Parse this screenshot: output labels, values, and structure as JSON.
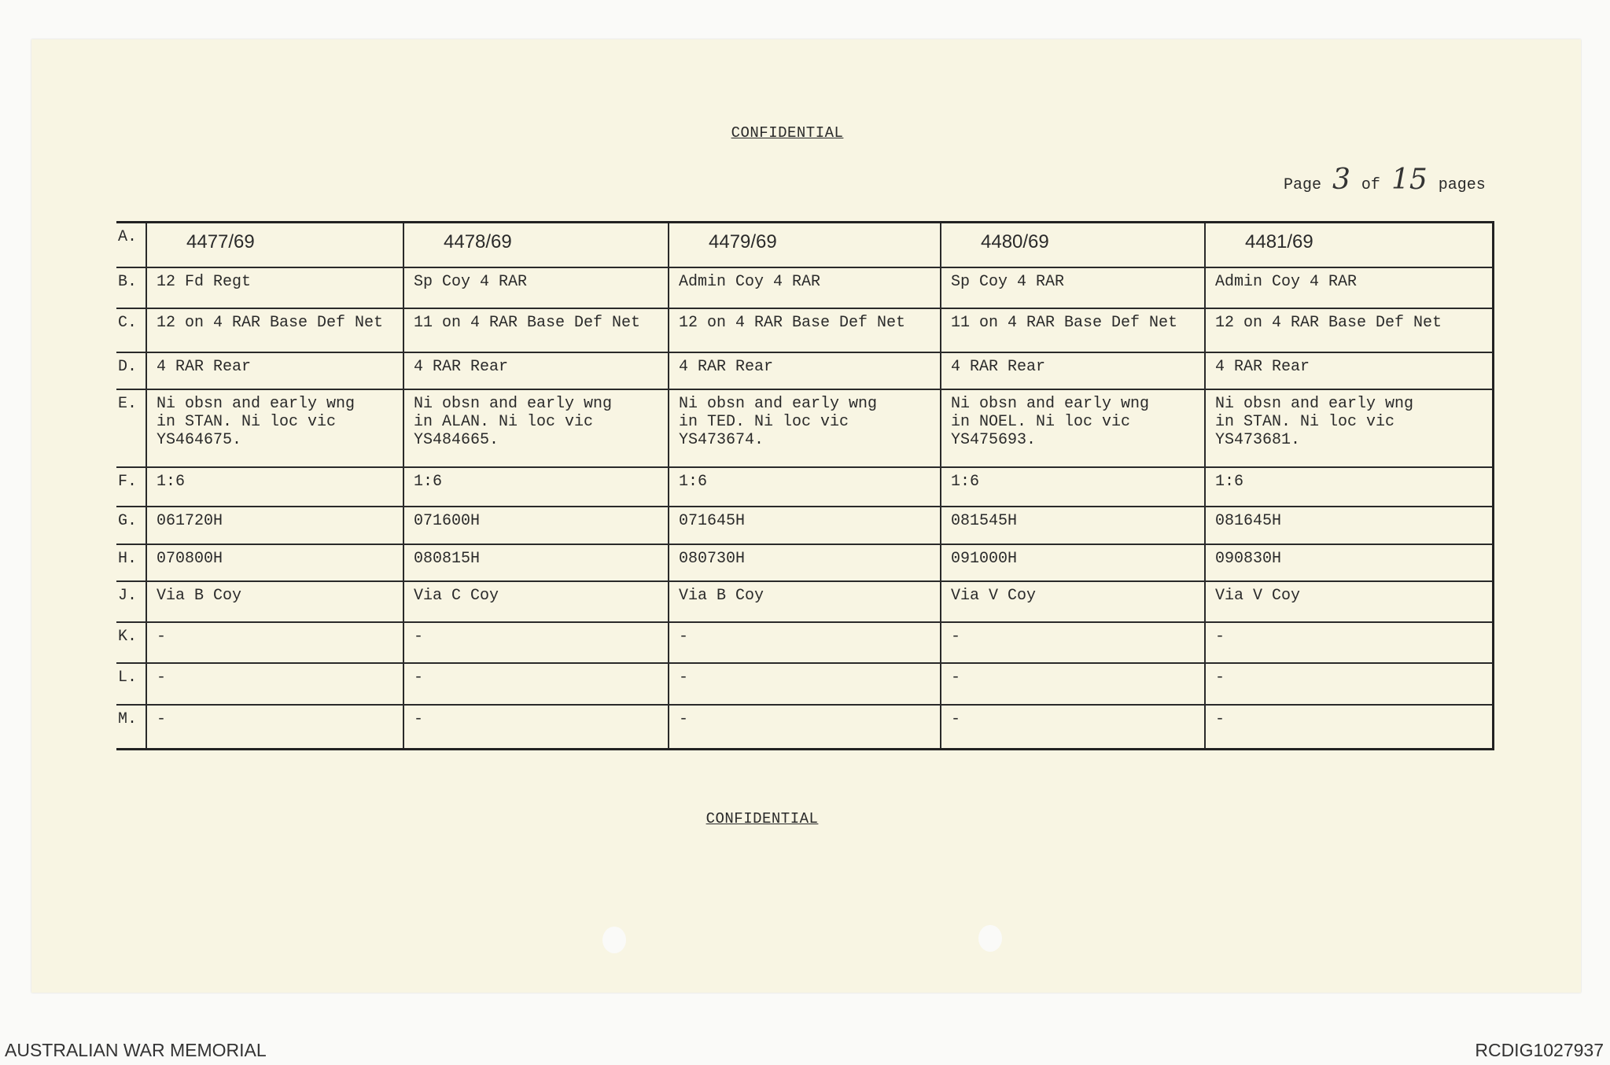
{
  "header": {
    "classification": "CONFIDENTIAL",
    "page_label": "Page",
    "page_number": "3",
    "of_label": "of",
    "total_pages": "15",
    "pages_label": "pages"
  },
  "table": {
    "row_labels": [
      "A.",
      "B.",
      "C.",
      "D.",
      "E.",
      "F.",
      "G.",
      "H.",
      "J.",
      "K.",
      "L.",
      "M."
    ],
    "columns": [
      [
        "4477/69",
        "12 Fd Regt",
        "12 on 4 RAR Base Def Net",
        "4 RAR Rear",
        "Ni obsn and early wng\nin STAN.  Ni loc vic\nYS464675.",
        "1:6",
        "061720H",
        "070800H",
        "Via B Coy",
        "-",
        "-",
        "-"
      ],
      [
        "4478/69",
        "Sp Coy 4 RAR",
        "11 on 4 RAR Base Def Net",
        "4 RAR Rear",
        "Ni obsn and early wng\nin ALAN.  Ni loc vic\nYS484665.",
        "1:6",
        "071600H",
        "080815H",
        "Via C Coy",
        "-",
        "-",
        "-"
      ],
      [
        "4479/69",
        "Admin Coy 4 RAR",
        "12 on 4 RAR Base Def Net",
        "4 RAR Rear",
        "Ni obsn and early wng\nin TED.  Ni loc vic\nYS473674.",
        "1:6",
        "071645H",
        "080730H",
        "Via B Coy",
        "-",
        "-",
        "-"
      ],
      [
        "4480/69",
        "Sp Coy 4 RAR",
        "11 on 4 RAR Base Def Net",
        "4 RAR Rear",
        "Ni obsn and early wng\nin NOEL.  Ni loc vic\nYS475693.",
        "1:6",
        "081545H",
        "091000H",
        "Via V Coy",
        "-",
        "-",
        "-"
      ],
      [
        "4481/69",
        "Admin Coy 4 RAR",
        "12 on 4 RAR Base Def Net",
        "4 RAR Rear",
        "Ni obsn and early wng\nin STAN.  Ni loc vic\nYS473681.",
        "1:6",
        "081645H",
        "090830H",
        "Via V Coy",
        "-",
        "-",
        "-"
      ]
    ]
  },
  "footer_classification": "CONFIDENTIAL",
  "footer": {
    "institution": "AUSTRALIAN WAR MEMORIAL",
    "record_id": "RCDIG1027937"
  }
}
